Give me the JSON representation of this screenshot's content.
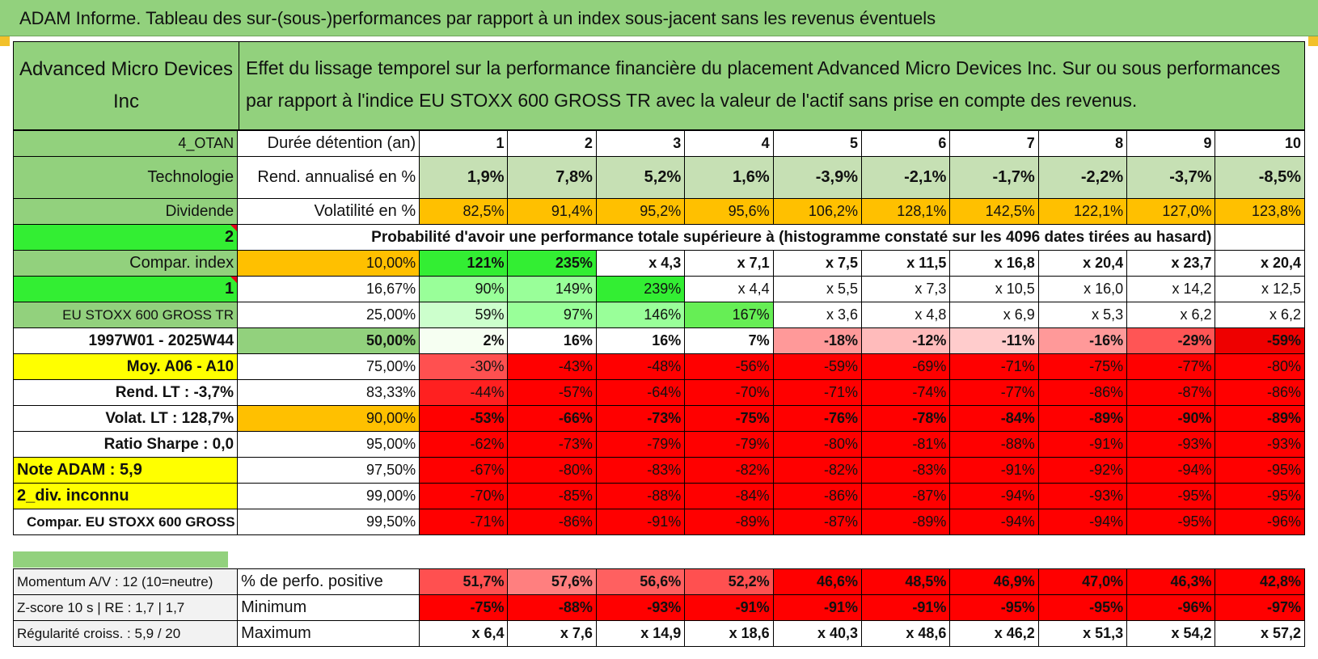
{
  "title": "ADAM Informe. Tableau des sur-(sous-)performances par rapport à un index sous-jacent sans les revenus éventuels",
  "header": {
    "company": "Advanced Micro Devices Inc",
    "description": "Effet du lissage temporel sur la performance financière du placement Advanced Micro Devices Inc. Sur ou sous performances par rapport à l'indice EU STOXX 600 GROSS TR avec la valeur de l'actif sans prise en compte des revenus."
  },
  "row_duration": {
    "side": "4_OTAN",
    "label": "Durée détention (an)",
    "years": [
      "1",
      "2",
      "3",
      "4",
      "5",
      "6",
      "7",
      "8",
      "9",
      "10"
    ]
  },
  "row_rend": {
    "side": "Technologie",
    "label": "Rend. annualisé en %",
    "values": [
      "1,9%",
      "7,8%",
      "5,2%",
      "1,6%",
      "-3,9%",
      "-2,1%",
      "-1,7%",
      "-2,2%",
      "-3,7%",
      "-8,5%"
    ]
  },
  "row_vol": {
    "side": "Dividende",
    "label": "Volatilité en %",
    "values": [
      "82,5%",
      "91,4%",
      "95,2%",
      "95,6%",
      "106,2%",
      "128,1%",
      "142,5%",
      "122,1%",
      "127,0%",
      "123,8%"
    ]
  },
  "row_prob": {
    "side": "2",
    "text": "Probabilité d'avoir une performance totale supérieure à (histogramme constaté sur les 4096 dates tirées au hasard)"
  },
  "quantile_rows": [
    {
      "side": "Compar. index",
      "pct": "10,00%",
      "values": [
        "121%",
        "235%",
        "x 4,3",
        "x 7,1",
        "x 7,5",
        "x 11,5",
        "x 16,8",
        "x 20,4",
        "x 23,7",
        "x 20,4"
      ]
    },
    {
      "side": "1",
      "pct": "16,67%",
      "values": [
        "90%",
        "149%",
        "239%",
        "x 4,4",
        "x 5,5",
        "x 7,3",
        "x 10,5",
        "x 16,0",
        "x 14,2",
        "x 12,5"
      ]
    },
    {
      "side": "EU STOXX 600 GROSS TR",
      "pct": "25,00%",
      "values": [
        "59%",
        "97%",
        "146%",
        "167%",
        "x 3,6",
        "x 4,8",
        "x 6,9",
        "x 5,3",
        "x 6,2",
        "x 6,2"
      ]
    },
    {
      "side": "1997W01 - 2025W44",
      "pct": "50,00%",
      "values": [
        "2%",
        "16%",
        "16%",
        "7%",
        "-18%",
        "-12%",
        "-11%",
        "-16%",
        "-29%",
        "-59%"
      ]
    },
    {
      "side": "Moy. A06 - A10",
      "pct": "75,00%",
      "values": [
        "-30%",
        "-43%",
        "-48%",
        "-56%",
        "-59%",
        "-69%",
        "-71%",
        "-75%",
        "-77%",
        "-80%"
      ]
    },
    {
      "side": "Rend. LT :    -3,7%",
      "pct": "83,33%",
      "values": [
        "-44%",
        "-57%",
        "-64%",
        "-70%",
        "-71%",
        "-74%",
        "-77%",
        "-86%",
        "-87%",
        "-86%"
      ]
    },
    {
      "side": "Volat. LT :    128,7%",
      "pct": "90,00%",
      "values": [
        "-53%",
        "-66%",
        "-73%",
        "-75%",
        "-76%",
        "-78%",
        "-84%",
        "-89%",
        "-90%",
        "-89%"
      ]
    },
    {
      "side": "Ratio Sharpe :    0,0",
      "pct": "95,00%",
      "values": [
        "-62%",
        "-73%",
        "-79%",
        "-79%",
        "-80%",
        "-81%",
        "-88%",
        "-91%",
        "-93%",
        "-93%"
      ]
    },
    {
      "side": "Note ADAM : 5,9",
      "pct": "97,50%",
      "values": [
        "-67%",
        "-80%",
        "-83%",
        "-82%",
        "-82%",
        "-83%",
        "-91%",
        "-92%",
        "-94%",
        "-95%"
      ]
    },
    {
      "side": "2_div. inconnu",
      "pct": "99,00%",
      "values": [
        "-70%",
        "-85%",
        "-88%",
        "-84%",
        "-86%",
        "-87%",
        "-94%",
        "-93%",
        "-95%",
        "-95%"
      ]
    },
    {
      "side": "Compar. EU STOXX 600 GROSS TR",
      "pct": "99,50%",
      "values": [
        "-71%",
        "-86%",
        "-91%",
        "-89%",
        "-87%",
        "-89%",
        "-94%",
        "-94%",
        "-95%",
        "-96%"
      ]
    }
  ],
  "bottom_rows": [
    {
      "side": "Momentum A/V : 12 (10=neutre)",
      "label": "% de perfo. positive",
      "values": [
        "51,7%",
        "57,6%",
        "56,6%",
        "52,2%",
        "46,6%",
        "48,5%",
        "46,9%",
        "47,0%",
        "46,3%",
        "42,8%"
      ]
    },
    {
      "side": "Z-score 10 s | RE : 1,7 | 1,7",
      "label": "Minimum",
      "values": [
        "-75%",
        "-88%",
        "-93%",
        "-91%",
        "-91%",
        "-91%",
        "-95%",
        "-95%",
        "-96%",
        "-97%"
      ]
    },
    {
      "side": "Régularité croiss. : 5,9 / 20",
      "label": "Maximum",
      "values": [
        "x 6,4",
        "x 7,6",
        "x 14,9",
        "x 18,6",
        "x 40,3",
        "x 48,6",
        "x 46,2",
        "x 51,3",
        "x 54,2",
        "x 57,2"
      ]
    }
  ],
  "colors": {
    "header_green": "#92d17d",
    "bright_green": "#33ee33",
    "orange": "#ffc000",
    "yellow": "#ffff00",
    "red": "#ff0000",
    "red_text": "#e3001b"
  }
}
